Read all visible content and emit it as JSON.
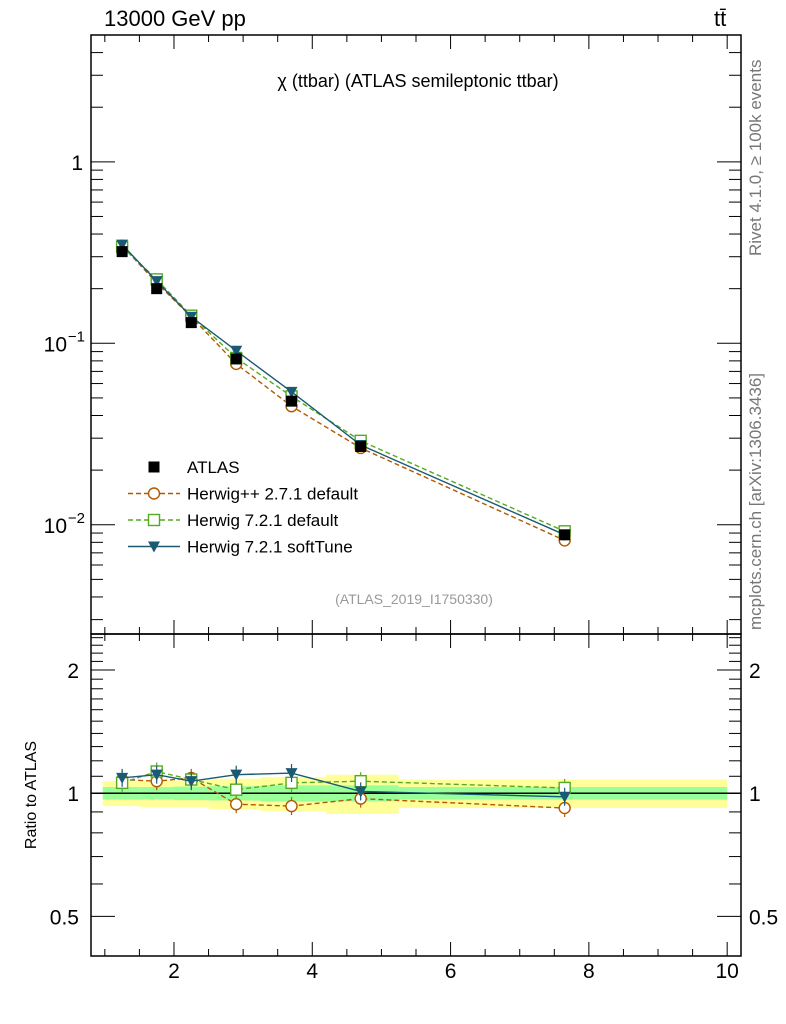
{
  "header": {
    "energy": "13000 GeV pp",
    "process": "tt̄"
  },
  "side_labels": {
    "rivet": "Rivet 4.1.0, ≥ 100k events",
    "mcplots": "mcplots.cern.ch [arXiv:1306.3436]"
  },
  "chart_data": [
    {
      "type": "line",
      "role": "main",
      "title": "χ (ttbar) (ATLAS semileptonic ttbar)",
      "analysis_tag": "(ATLAS_2019_I1750330)",
      "xlabel": "",
      "ylabel": "",
      "yscale": "log",
      "xlim": [
        0.8,
        10.2
      ],
      "ylim": [
        0.0025,
        5.0
      ],
      "ytick_labels": [
        "1",
        "10",
        "10"
      ],
      "ytick_exponents": [
        "",
        "−1",
        "−2"
      ],
      "legend_position": "middle-left",
      "x": [
        1.25,
        1.75,
        2.25,
        2.9,
        3.7,
        4.7,
        7.65
      ],
      "series": [
        {
          "name": "ATLAS",
          "style": "data",
          "color": "#000000",
          "marker": "square-filled",
          "values": [
            0.32,
            0.2,
            0.13,
            0.082,
            0.048,
            0.027,
            0.0088
          ]
        },
        {
          "name": "Herwig++ 2.7.1 default",
          "style": "dashed",
          "color": "#b35900",
          "marker": "circle-open",
          "values": [
            0.345,
            0.215,
            0.14,
            0.077,
            0.045,
            0.0265,
            0.0082
          ]
        },
        {
          "name": "Herwig 7.2.1 default",
          "style": "dashed",
          "color": "#55aa22",
          "marker": "square-open",
          "values": [
            0.34,
            0.225,
            0.142,
            0.083,
            0.051,
            0.029,
            0.0092
          ]
        },
        {
          "name": "Herwig 7.2.1 softTune",
          "style": "solid",
          "color": "#1b5a73",
          "marker": "triangle-down-filled",
          "values": [
            0.35,
            0.22,
            0.14,
            0.091,
            0.054,
            0.0275,
            0.0088
          ]
        }
      ]
    },
    {
      "type": "line",
      "role": "ratio",
      "ylabel": "Ratio to ATLAS",
      "yscale": "log",
      "xlim": [
        0.8,
        10.2
      ],
      "ylim": [
        0.4,
        2.45
      ],
      "x_ticks": [
        2,
        4,
        6,
        8,
        10
      ],
      "y_ticks": [
        0.5,
        1,
        2
      ],
      "x": [
        1.25,
        1.75,
        2.25,
        2.9,
        3.7,
        4.7,
        7.65
      ],
      "bands": {
        "inner_color": "#99ff99",
        "outer_color": "#ffff99",
        "edges": [
          0.97,
          1.5,
          2.0,
          2.5,
          3.25,
          4.2,
          5.25,
          10.0
        ],
        "inner_half": [
          0.035,
          0.035,
          0.038,
          0.04,
          0.045,
          0.045,
          0.035
        ],
        "outer_half": [
          0.07,
          0.075,
          0.075,
          0.085,
          0.095,
          0.11,
          0.08
        ]
      },
      "series": [
        {
          "name": "Herwig++ 2.7.1 default",
          "style": "dashed",
          "color": "#b35900",
          "marker": "circle-open",
          "values": [
            1.08,
            1.07,
            1.09,
            0.94,
            0.93,
            0.97,
            0.92
          ]
        },
        {
          "name": "Herwig 7.2.1 default",
          "style": "dashed",
          "color": "#55aa22",
          "marker": "square-open",
          "values": [
            1.06,
            1.13,
            1.08,
            1.02,
            1.06,
            1.07,
            1.03
          ]
        },
        {
          "name": "Herwig 7.2.1 softTune",
          "style": "solid",
          "color": "#1b5a73",
          "marker": "triangle-down-filled",
          "values": [
            1.09,
            1.11,
            1.07,
            1.11,
            1.12,
            1.01,
            0.98
          ]
        }
      ]
    }
  ]
}
